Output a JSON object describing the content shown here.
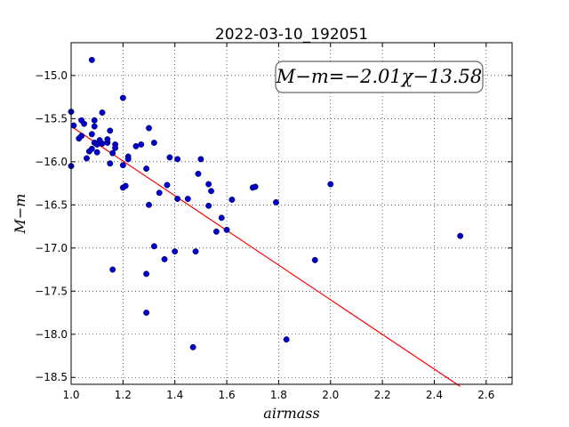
{
  "chart_data": {
    "type": "scatter",
    "title": "2022-03-10_192051",
    "xlabel": "airmass",
    "ylabel": "M−m",
    "xlim": [
      1.0,
      2.7
    ],
    "ylim": [
      -18.58,
      -14.62
    ],
    "y_inverted": true,
    "grid": true,
    "x_ticks": [
      1.0,
      1.2,
      1.4,
      1.6,
      1.8,
      2.0,
      2.2,
      2.4,
      2.6
    ],
    "x_tick_labels": [
      "1.0",
      "1.2",
      "1.4",
      "1.6",
      "1.8",
      "2.0",
      "2.2",
      "2.4",
      "2.6"
    ],
    "y_ticks": [
      -15.0,
      -15.5,
      -16.0,
      -16.5,
      -17.0,
      -17.5,
      -18.0,
      -18.5
    ],
    "y_tick_labels": [
      "−15.0",
      "−15.5",
      "−16.0",
      "−16.5",
      "−17.0",
      "−17.5",
      "−18.0",
      "−18.5"
    ],
    "annotation": "M−m=−2.01χ−13.58",
    "fit": {
      "slope": -2.01,
      "intercept": -13.58,
      "x_range": [
        1.0,
        2.5
      ],
      "color": "#ff0000"
    },
    "point_color": "#0000cc",
    "points": [
      {
        "x": 1.0,
        "y": -15.42
      },
      {
        "x": 1.0,
        "y": -16.05
      },
      {
        "x": 1.01,
        "y": -15.58
      },
      {
        "x": 1.03,
        "y": -15.73
      },
      {
        "x": 1.04,
        "y": -15.7
      },
      {
        "x": 1.04,
        "y": -15.52
      },
      {
        "x": 1.05,
        "y": -15.56
      },
      {
        "x": 1.06,
        "y": -15.96
      },
      {
        "x": 1.07,
        "y": -15.88
      },
      {
        "x": 1.08,
        "y": -14.82
      },
      {
        "x": 1.08,
        "y": -15.68
      },
      {
        "x": 1.08,
        "y": -15.85
      },
      {
        "x": 1.09,
        "y": -15.78
      },
      {
        "x": 1.09,
        "y": -15.52
      },
      {
        "x": 1.09,
        "y": -15.59
      },
      {
        "x": 1.1,
        "y": -15.89
      },
      {
        "x": 1.1,
        "y": -15.8
      },
      {
        "x": 1.11,
        "y": -15.75
      },
      {
        "x": 1.12,
        "y": -15.43
      },
      {
        "x": 1.12,
        "y": -15.79
      },
      {
        "x": 1.14,
        "y": -15.78
      },
      {
        "x": 1.14,
        "y": -15.74
      },
      {
        "x": 1.15,
        "y": -15.64
      },
      {
        "x": 1.15,
        "y": -16.02
      },
      {
        "x": 1.16,
        "y": -15.9
      },
      {
        "x": 1.16,
        "y": -17.25
      },
      {
        "x": 1.17,
        "y": -15.8
      },
      {
        "x": 1.17,
        "y": -15.84
      },
      {
        "x": 1.2,
        "y": -15.26
      },
      {
        "x": 1.2,
        "y": -16.04
      },
      {
        "x": 1.2,
        "y": -16.3
      },
      {
        "x": 1.21,
        "y": -16.28
      },
      {
        "x": 1.22,
        "y": -15.94
      },
      {
        "x": 1.22,
        "y": -15.97
      },
      {
        "x": 1.25,
        "y": -15.82
      },
      {
        "x": 1.27,
        "y": -15.8
      },
      {
        "x": 1.29,
        "y": -16.08
      },
      {
        "x": 1.29,
        "y": -17.3
      },
      {
        "x": 1.29,
        "y": -17.75
      },
      {
        "x": 1.3,
        "y": -15.61
      },
      {
        "x": 1.3,
        "y": -16.5
      },
      {
        "x": 1.32,
        "y": -15.78
      },
      {
        "x": 1.32,
        "y": -16.98
      },
      {
        "x": 1.34,
        "y": -16.36
      },
      {
        "x": 1.36,
        "y": -17.13
      },
      {
        "x": 1.37,
        "y": -16.27
      },
      {
        "x": 1.38,
        "y": -15.95
      },
      {
        "x": 1.4,
        "y": -17.04
      },
      {
        "x": 1.41,
        "y": -15.97
      },
      {
        "x": 1.41,
        "y": -16.43
      },
      {
        "x": 1.45,
        "y": -16.43
      },
      {
        "x": 1.47,
        "y": -18.15
      },
      {
        "x": 1.48,
        "y": -17.04
      },
      {
        "x": 1.49,
        "y": -16.14
      },
      {
        "x": 1.5,
        "y": -15.97
      },
      {
        "x": 1.53,
        "y": -16.26
      },
      {
        "x": 1.53,
        "y": -16.51
      },
      {
        "x": 1.54,
        "y": -16.34
      },
      {
        "x": 1.56,
        "y": -16.81
      },
      {
        "x": 1.58,
        "y": -16.65
      },
      {
        "x": 1.6,
        "y": -16.79
      },
      {
        "x": 1.62,
        "y": -16.44
      },
      {
        "x": 1.7,
        "y": -16.3
      },
      {
        "x": 1.71,
        "y": -16.29
      },
      {
        "x": 1.79,
        "y": -16.47
      },
      {
        "x": 1.83,
        "y": -18.06
      },
      {
        "x": 1.94,
        "y": -17.14
      },
      {
        "x": 2.0,
        "y": -16.26
      },
      {
        "x": 2.5,
        "y": -16.86
      }
    ]
  }
}
